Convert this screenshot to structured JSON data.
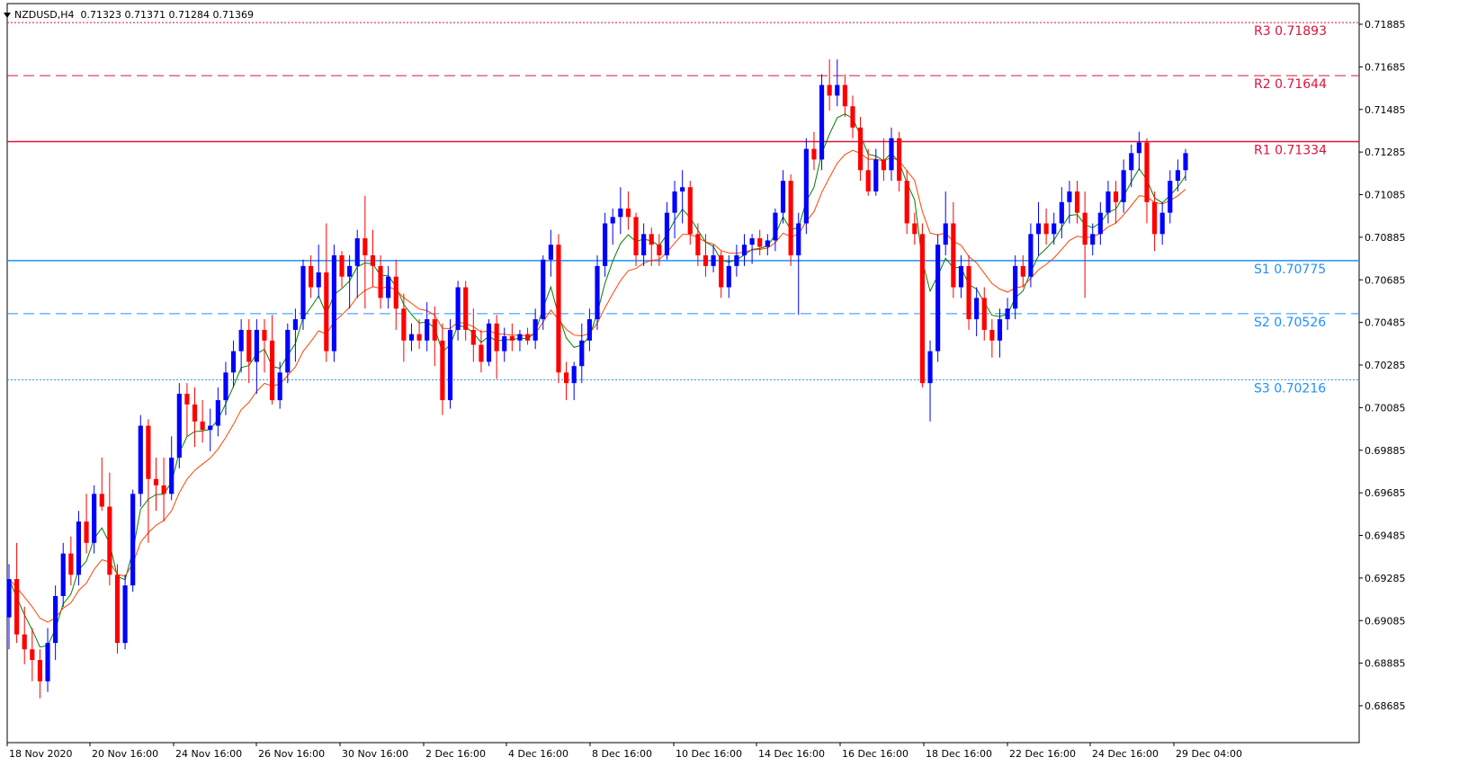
{
  "header": {
    "symbol": "NZDUSD,H4",
    "ohlc": "0.71323 0.71371 0.71284 0.71369"
  },
  "colors": {
    "bull": "#0000ff",
    "bear": "#ff0000",
    "ma_fast": "#008000",
    "ma_slow": "#ff4500",
    "resistance": "#dc143c",
    "support": "#1e90ff",
    "axis": "#000000"
  },
  "chart_data": {
    "type": "candlestick",
    "timeframe": "H4",
    "ylim": [
      0.6858,
      0.7198
    ],
    "y_ticks": [
      "0.71885",
      "0.71685",
      "0.71485",
      "0.71285",
      "0.71085",
      "0.70885",
      "0.70685",
      "0.70485",
      "0.70285",
      "0.70085",
      "0.69885",
      "0.69685",
      "0.69485",
      "0.69285",
      "0.69085",
      "0.68885",
      "0.68685"
    ],
    "x_ticks": [
      "18 Nov 2020",
      "20 Nov 16:00",
      "24 Nov 16:00",
      "26 Nov 16:00",
      "30 Nov 16:00",
      "2 Dec 16:00",
      "4 Dec 16:00",
      "8 Dec 16:00",
      "10 Dec 16:00",
      "14 Dec 16:00",
      "16 Dec 16:00",
      "18 Dec 16:00",
      "22 Dec 16:00",
      "24 Dec 16:00",
      "29 Dec 04:00"
    ],
    "levels": [
      {
        "name": "R3",
        "value": "0.71893",
        "style": "dotted",
        "kind": "resistance"
      },
      {
        "name": "R2",
        "value": "0.71644",
        "style": "dashed",
        "kind": "resistance"
      },
      {
        "name": "R1",
        "value": "0.71334",
        "style": "solid",
        "kind": "resistance"
      },
      {
        "name": "S1",
        "value": "0.70775",
        "style": "solid",
        "kind": "support"
      },
      {
        "name": "S2",
        "value": "0.70526",
        "style": "dashed",
        "kind": "support"
      },
      {
        "name": "S3",
        "value": "0.70216",
        "style": "dotted",
        "kind": "support"
      }
    ],
    "ohlc_series": [
      [
        0.691,
        0.6935,
        0.6895,
        0.6928
      ],
      [
        0.6928,
        0.6945,
        0.6898,
        0.6902
      ],
      [
        0.6902,
        0.6915,
        0.6888,
        0.6895
      ],
      [
        0.6895,
        0.6905,
        0.688,
        0.689
      ],
      [
        0.689,
        0.6895,
        0.6872,
        0.688
      ],
      [
        0.688,
        0.6905,
        0.6875,
        0.6898
      ],
      [
        0.6898,
        0.6925,
        0.689,
        0.692
      ],
      [
        0.692,
        0.6945,
        0.6915,
        0.694
      ],
      [
        0.694,
        0.6948,
        0.6925,
        0.693
      ],
      [
        0.693,
        0.696,
        0.6925,
        0.6955
      ],
      [
        0.6955,
        0.6968,
        0.694,
        0.6945
      ],
      [
        0.6945,
        0.6972,
        0.694,
        0.6968
      ],
      [
        0.6968,
        0.6985,
        0.696,
        0.6962
      ],
      [
        0.6962,
        0.6978,
        0.6925,
        0.693
      ],
      [
        0.693,
        0.6935,
        0.6893,
        0.6898
      ],
      [
        0.6898,
        0.693,
        0.6895,
        0.6925
      ],
      [
        0.6925,
        0.697,
        0.6922,
        0.6968
      ],
      [
        0.6968,
        0.7005,
        0.6962,
        0.7
      ],
      [
        0.7,
        0.7003,
        0.6945,
        0.6975
      ],
      [
        0.6975,
        0.6985,
        0.696,
        0.6972
      ],
      [
        0.6972,
        0.6985,
        0.6955,
        0.6968
      ],
      [
        0.6968,
        0.6995,
        0.6965,
        0.6985
      ],
      [
        0.6985,
        0.702,
        0.698,
        0.7015
      ],
      [
        0.7015,
        0.702,
        0.6995,
        0.701
      ],
      [
        0.701,
        0.7018,
        0.699,
        0.7002
      ],
      [
        0.7002,
        0.7012,
        0.6992,
        0.6998
      ],
      [
        0.6998,
        0.7008,
        0.6988,
        0.7
      ],
      [
        0.7,
        0.7018,
        0.6995,
        0.7012
      ],
      [
        0.7012,
        0.703,
        0.7005,
        0.7025
      ],
      [
        0.7025,
        0.704,
        0.7018,
        0.7035
      ],
      [
        0.7035,
        0.705,
        0.7025,
        0.7045
      ],
      [
        0.7045,
        0.705,
        0.702,
        0.703
      ],
      [
        0.703,
        0.705,
        0.7015,
        0.7045
      ],
      [
        0.7045,
        0.705,
        0.7025,
        0.704
      ],
      [
        0.704,
        0.7052,
        0.701,
        0.7012
      ],
      [
        0.7012,
        0.703,
        0.7008,
        0.7025
      ],
      [
        0.7025,
        0.7048,
        0.702,
        0.7045
      ],
      [
        0.7045,
        0.7055,
        0.703,
        0.705
      ],
      [
        0.705,
        0.7078,
        0.7045,
        0.7075
      ],
      [
        0.7075,
        0.708,
        0.706,
        0.7065
      ],
      [
        0.7065,
        0.7085,
        0.706,
        0.7072
      ],
      [
        0.7072,
        0.7095,
        0.703,
        0.7035
      ],
      [
        0.7035,
        0.7085,
        0.703,
        0.708
      ],
      [
        0.708,
        0.7082,
        0.7065,
        0.707
      ],
      [
        0.707,
        0.708,
        0.7055,
        0.7075
      ],
      [
        0.7075,
        0.7092,
        0.706,
        0.7088
      ],
      [
        0.7088,
        0.7108,
        0.7055,
        0.708
      ],
      [
        0.708,
        0.7092,
        0.7065,
        0.7075
      ],
      [
        0.7075,
        0.708,
        0.7055,
        0.706
      ],
      [
        0.706,
        0.7075,
        0.7055,
        0.707
      ],
      [
        0.707,
        0.7078,
        0.7045,
        0.7055
      ],
      [
        0.7055,
        0.7062,
        0.703,
        0.704
      ],
      [
        0.704,
        0.7048,
        0.7035,
        0.7043
      ],
      [
        0.7043,
        0.705,
        0.7036,
        0.704
      ],
      [
        0.704,
        0.7058,
        0.7035,
        0.705
      ],
      [
        0.705,
        0.7056,
        0.7028,
        0.704
      ],
      [
        0.704,
        0.7048,
        0.7005,
        0.7012
      ],
      [
        0.7012,
        0.705,
        0.7008,
        0.7045
      ],
      [
        0.7045,
        0.7068,
        0.704,
        0.7065
      ],
      [
        0.7065,
        0.7068,
        0.704,
        0.7045
      ],
      [
        0.7045,
        0.7055,
        0.703,
        0.7038
      ],
      [
        0.7038,
        0.7045,
        0.7025,
        0.703
      ],
      [
        0.703,
        0.705,
        0.7028,
        0.7048
      ],
      [
        0.7048,
        0.7052,
        0.7022,
        0.7035
      ],
      [
        0.7035,
        0.7046,
        0.703,
        0.7042
      ],
      [
        0.7042,
        0.7048,
        0.7035,
        0.704
      ],
      [
        0.704,
        0.7045,
        0.7035,
        0.7043
      ],
      [
        0.7043,
        0.7046,
        0.7038,
        0.704
      ],
      [
        0.704,
        0.7055,
        0.7036,
        0.705
      ],
      [
        0.705,
        0.708,
        0.7045,
        0.7078
      ],
      [
        0.7078,
        0.7092,
        0.707,
        0.7085
      ],
      [
        0.7085,
        0.709,
        0.702,
        0.7025
      ],
      [
        0.7025,
        0.703,
        0.7012,
        0.702
      ],
      [
        0.702,
        0.703,
        0.7012,
        0.7028
      ],
      [
        0.7028,
        0.7048,
        0.702,
        0.704
      ],
      [
        0.704,
        0.7055,
        0.7035,
        0.705
      ],
      [
        0.705,
        0.708,
        0.7045,
        0.7075
      ],
      [
        0.7075,
        0.71,
        0.707,
        0.7095
      ],
      [
        0.7095,
        0.7102,
        0.7085,
        0.7098
      ],
      [
        0.7098,
        0.7112,
        0.709,
        0.7102
      ],
      [
        0.7102,
        0.711,
        0.7092,
        0.7098
      ],
      [
        0.7098,
        0.71,
        0.7075,
        0.708
      ],
      [
        0.708,
        0.7095,
        0.7075,
        0.709
      ],
      [
        0.709,
        0.7093,
        0.7075,
        0.7085
      ],
      [
        0.7085,
        0.709,
        0.7075,
        0.708
      ],
      [
        0.708,
        0.7105,
        0.7078,
        0.71
      ],
      [
        0.71,
        0.7115,
        0.7088,
        0.711
      ],
      [
        0.711,
        0.712,
        0.7095,
        0.7112
      ],
      [
        0.7112,
        0.7115,
        0.7085,
        0.709
      ],
      [
        0.709,
        0.7095,
        0.7075,
        0.708
      ],
      [
        0.708,
        0.709,
        0.707,
        0.7075
      ],
      [
        0.7075,
        0.7085,
        0.7072,
        0.708
      ],
      [
        0.708,
        0.7082,
        0.706,
        0.7065
      ],
      [
        0.7065,
        0.708,
        0.706,
        0.7075
      ],
      [
        0.7075,
        0.7085,
        0.707,
        0.708
      ],
      [
        0.708,
        0.709,
        0.7075,
        0.7085
      ],
      [
        0.7085,
        0.709,
        0.7076,
        0.7088
      ],
      [
        0.7088,
        0.7092,
        0.708,
        0.7084
      ],
      [
        0.7084,
        0.709,
        0.708,
        0.7087
      ],
      [
        0.7087,
        0.7102,
        0.7082,
        0.71
      ],
      [
        0.71,
        0.712,
        0.7095,
        0.7115
      ],
      [
        0.7115,
        0.7118,
        0.7075,
        0.708
      ],
      [
        0.708,
        0.71,
        0.7052,
        0.7095
      ],
      [
        0.7095,
        0.7135,
        0.709,
        0.713
      ],
      [
        0.713,
        0.7138,
        0.712,
        0.7125
      ],
      [
        0.7125,
        0.7165,
        0.712,
        0.716
      ],
      [
        0.716,
        0.7172,
        0.7148,
        0.7155
      ],
      [
        0.7155,
        0.7172,
        0.715,
        0.716
      ],
      [
        0.716,
        0.7165,
        0.7145,
        0.715
      ],
      [
        0.715,
        0.7155,
        0.7135,
        0.714
      ],
      [
        0.714,
        0.7145,
        0.7115,
        0.712
      ],
      [
        0.712,
        0.713,
        0.7108,
        0.711
      ],
      [
        0.711,
        0.713,
        0.7108,
        0.7125
      ],
      [
        0.7125,
        0.7135,
        0.7115,
        0.712
      ],
      [
        0.712,
        0.714,
        0.7115,
        0.7135
      ],
      [
        0.7135,
        0.7138,
        0.711,
        0.7115
      ],
      [
        0.7115,
        0.712,
        0.709,
        0.7095
      ],
      [
        0.7095,
        0.71,
        0.7085,
        0.709
      ],
      [
        0.709,
        0.7095,
        0.7018,
        0.702
      ],
      [
        0.702,
        0.704,
        0.7002,
        0.7035
      ],
      [
        0.7035,
        0.709,
        0.703,
        0.7085
      ],
      [
        0.7085,
        0.711,
        0.708,
        0.7095
      ],
      [
        0.7095,
        0.7105,
        0.706,
        0.7065
      ],
      [
        0.7065,
        0.708,
        0.706,
        0.7075
      ],
      [
        0.7075,
        0.708,
        0.7045,
        0.705
      ],
      [
        0.705,
        0.7065,
        0.7042,
        0.706
      ],
      [
        0.706,
        0.7065,
        0.704,
        0.7045
      ],
      [
        0.7045,
        0.705,
        0.7032,
        0.704
      ],
      [
        0.704,
        0.7055,
        0.7032,
        0.705
      ],
      [
        0.705,
        0.706,
        0.7045,
        0.7055
      ],
      [
        0.7055,
        0.708,
        0.705,
        0.7075
      ],
      [
        0.7075,
        0.708,
        0.7065,
        0.707
      ],
      [
        0.707,
        0.7095,
        0.7065,
        0.709
      ],
      [
        0.709,
        0.7105,
        0.708,
        0.7095
      ],
      [
        0.7095,
        0.7102,
        0.7085,
        0.709
      ],
      [
        0.709,
        0.71,
        0.7085,
        0.7095
      ],
      [
        0.7095,
        0.7112,
        0.7088,
        0.7105
      ],
      [
        0.7105,
        0.7115,
        0.7095,
        0.711
      ],
      [
        0.711,
        0.7115,
        0.7095,
        0.71
      ],
      [
        0.71,
        0.711,
        0.706,
        0.7085
      ],
      [
        0.7085,
        0.7095,
        0.708,
        0.709
      ],
      [
        0.709,
        0.7105,
        0.7085,
        0.71
      ],
      [
        0.71,
        0.7115,
        0.7095,
        0.711
      ],
      [
        0.711,
        0.7115,
        0.7095,
        0.7105
      ],
      [
        0.7105,
        0.7125,
        0.71,
        0.712
      ],
      [
        0.712,
        0.7132,
        0.7112,
        0.7128
      ],
      [
        0.7128,
        0.7138,
        0.712,
        0.7133
      ],
      [
        0.7133,
        0.7135,
        0.7095,
        0.7105
      ],
      [
        0.7105,
        0.711,
        0.7082,
        0.709
      ],
      [
        0.709,
        0.7105,
        0.7085,
        0.71
      ],
      [
        0.71,
        0.712,
        0.7095,
        0.7115
      ],
      [
        0.7115,
        0.7125,
        0.711,
        0.712
      ],
      [
        0.712,
        0.713,
        0.7115,
        0.7128
      ]
    ]
  }
}
